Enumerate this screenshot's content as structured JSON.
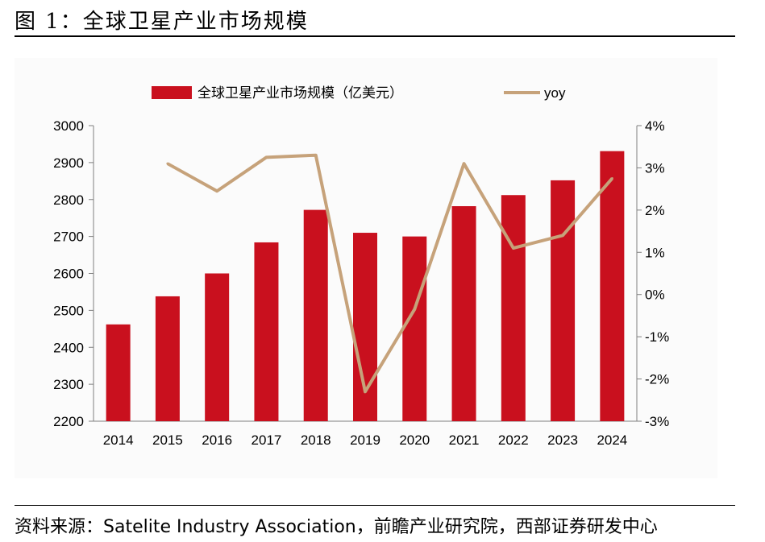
{
  "page": {
    "title": "图 1：全球卫星产业市场规模",
    "source": "资料来源：Satelite Industry Association，前瞻产业研究院，西部证券研发中心"
  },
  "colors": {
    "bar": "#c9101e",
    "line": "#c6a27a",
    "axis": "#7f7f7f"
  },
  "chart_data": {
    "type": "bar",
    "categories": [
      "2014",
      "2015",
      "2016",
      "2017",
      "2018",
      "2019",
      "2020",
      "2021",
      "2022",
      "2023",
      "2024"
    ],
    "series": [
      {
        "name": "全球卫星产业市场规模（亿美元）",
        "type": "bar",
        "axis": "left",
        "values": [
          2462,
          2538,
          2600,
          2684,
          2772,
          2710,
          2700,
          2782,
          2812,
          2852,
          2931
        ]
      },
      {
        "name": "yoy",
        "type": "line",
        "axis": "right",
        "values": [
          null,
          3.1,
          2.45,
          3.25,
          3.3,
          -2.3,
          -0.35,
          3.1,
          1.1,
          1.4,
          2.75
        ]
      }
    ],
    "y_left": {
      "min": 2200,
      "max": 3000,
      "ticks": [
        "2200",
        "2300",
        "2400",
        "2500",
        "2600",
        "2700",
        "2800",
        "2900",
        "3000"
      ]
    },
    "y_right": {
      "min": -3,
      "max": 4,
      "ticks": [
        "-3%",
        "-2%",
        "-1%",
        "0%",
        "1%",
        "2%",
        "3%",
        "4%"
      ]
    },
    "legend_position": "top",
    "grid": false
  }
}
